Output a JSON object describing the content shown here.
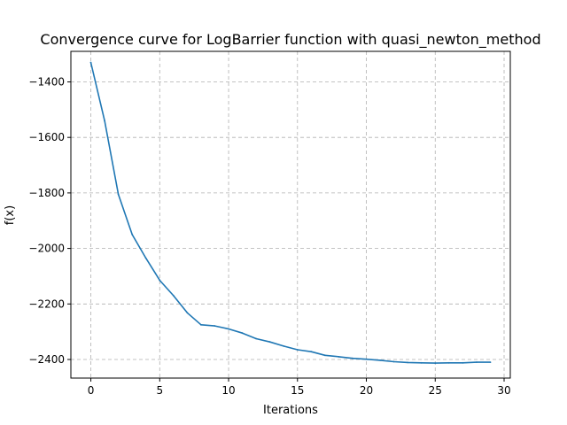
{
  "chart_data": {
    "type": "line",
    "title": "Convergence curve for LogBarrier function with quasi_newton_method",
    "xlabel": "Iterations",
    "ylabel": "f(x)",
    "xlim": [
      -1.45,
      30.45
    ],
    "ylim": [
      -2467,
      -1290
    ],
    "grid": true,
    "x_ticks": [
      0,
      5,
      10,
      15,
      20,
      25,
      30
    ],
    "x_tick_labels": [
      "0",
      "5",
      "10",
      "15",
      "20",
      "25",
      "30"
    ],
    "y_ticks": [
      -1400,
      -1600,
      -1800,
      -2000,
      -2200,
      -2400
    ],
    "y_tick_labels": [
      "−1400",
      "−1600",
      "−1800",
      "−2000",
      "−2200",
      "−2400"
    ],
    "line_color": "#1f77b4",
    "series": [
      {
        "x": [
          0,
          1,
          2,
          3,
          4,
          5,
          6,
          7,
          8,
          9,
          10,
          11,
          12,
          13,
          14,
          15,
          16,
          17,
          18,
          19,
          20,
          21,
          22,
          23,
          24,
          25,
          26,
          27,
          28,
          29
        ],
        "values": [
          -1330,
          -1540,
          -1805,
          -1950,
          -2035,
          -2115,
          -2170,
          -2232,
          -2275,
          -2279,
          -2290,
          -2305,
          -2325,
          -2337,
          -2352,
          -2365,
          -2372,
          -2385,
          -2390,
          -2396,
          -2399,
          -2403,
          -2408,
          -2411,
          -2412,
          -2413,
          -2412,
          -2412,
          -2410,
          -2410
        ]
      }
    ]
  }
}
